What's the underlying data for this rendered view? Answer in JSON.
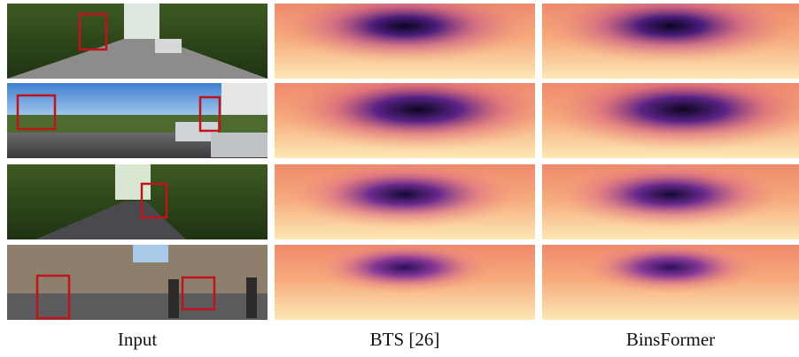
{
  "columns": [
    {
      "label": "Input"
    },
    {
      "label": "BTS [26]"
    },
    {
      "label": "BinsFormer"
    }
  ]
}
